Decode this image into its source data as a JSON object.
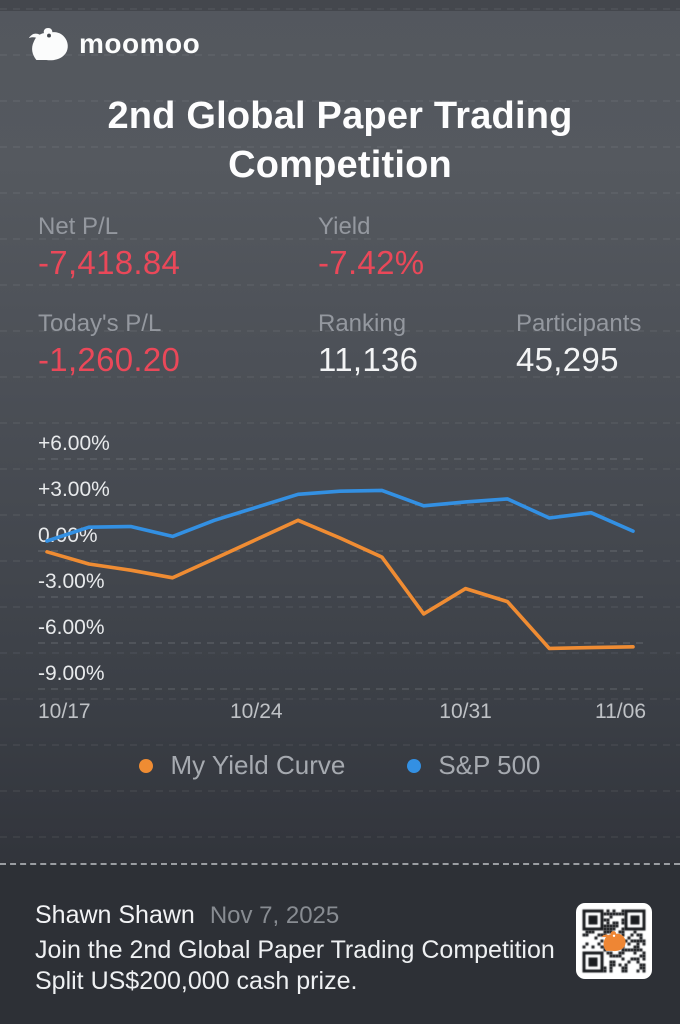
{
  "brand": {
    "logo_text": "moomoo"
  },
  "title": "2nd Global Paper Trading Competition",
  "stats": {
    "net_pl": {
      "label": "Net P/L",
      "value": "-7,418.84"
    },
    "yield": {
      "label": "Yield",
      "value": "-7.42%"
    },
    "today_pl": {
      "label": "Today's P/L",
      "value": "-1,260.20"
    },
    "ranking": {
      "label": "Ranking",
      "value": "11,136"
    },
    "participants": {
      "label": "Participants",
      "value": "45,295"
    }
  },
  "colors": {
    "negative": "#ea4859",
    "neutral_value": "#f3f4f5",
    "my_yield_line": "#ef8c33",
    "sp500_line": "#3390e3",
    "gridline": "#8a8d93",
    "axis_label": "#e8eaec",
    "x_label": "#bfc2c6"
  },
  "chart_data": {
    "type": "line",
    "x": [
      "10/17",
      "10/20",
      "10/21",
      "10/22",
      "10/23",
      "10/24",
      "10/27",
      "10/28",
      "10/29",
      "10/30",
      "10/31",
      "11/03",
      "11/04",
      "11/05",
      "11/06"
    ],
    "series": [
      {
        "name": "My Yield Curve",
        "color": "#ef8c33",
        "values": [
          -0.05,
          -0.85,
          -1.25,
          -1.75,
          -0.5,
          0.75,
          2.0,
          0.85,
          -0.4,
          -4.1,
          -2.45,
          -3.3,
          -6.35,
          -6.3,
          -6.25
        ]
      },
      {
        "name": "S&P 500",
        "color": "#3390e3",
        "values": [
          0.65,
          1.55,
          1.6,
          0.95,
          2.0,
          2.85,
          3.7,
          3.9,
          3.95,
          2.95,
          3.2,
          3.4,
          2.15,
          2.5,
          1.3
        ]
      }
    ],
    "yticks": [
      {
        "value": 6,
        "label": "+6.00%"
      },
      {
        "value": 3,
        "label": "+3.00%"
      },
      {
        "value": 0,
        "label": "0.00%"
      },
      {
        "value": -3,
        "label": "-3.00%"
      },
      {
        "value": -6,
        "label": "-6.00%"
      },
      {
        "value": -9,
        "label": "-9.00%"
      }
    ],
    "xticks": [
      {
        "index": 0,
        "label": "10/17"
      },
      {
        "index": 5,
        "label": "10/24"
      },
      {
        "index": 10,
        "label": "10/31"
      },
      {
        "index": 14,
        "label": "11/06"
      }
    ],
    "ylim": [
      -9,
      6
    ],
    "grid": "dashed horizontal",
    "legend_position": "bottom",
    "title": "",
    "xlabel": "",
    "ylabel": ""
  },
  "footer": {
    "author": "Shawn Shawn",
    "date": "Nov 7, 2025",
    "promo_line1": "Join the 2nd Global Paper Trading Competition",
    "promo_line2": "Split US$200,000 cash prize.",
    "qr_label": "moomoo-qr-code"
  }
}
